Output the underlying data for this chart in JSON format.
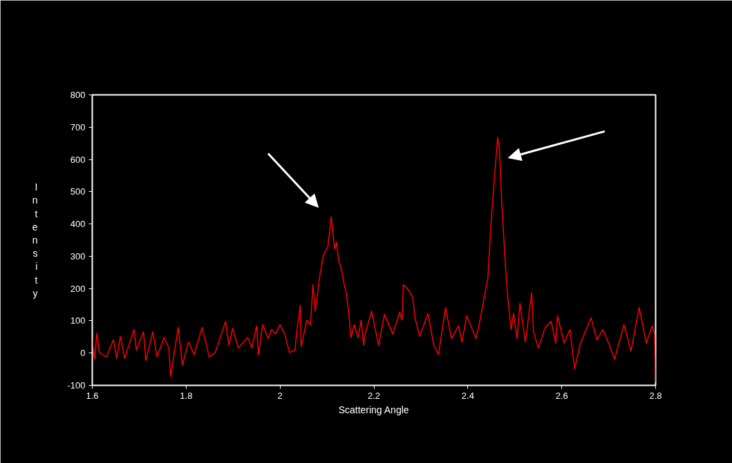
{
  "chart_data": {
    "type": "line",
    "xlabel": "Scattering Angle",
    "ylabel": "Intensity",
    "xlim": [
      1.6,
      2.8
    ],
    "ylim": [
      -100,
      800
    ],
    "xticks": [
      1.6,
      1.8,
      2,
      2.2,
      2.4,
      2.6,
      2.8
    ],
    "yticks": [
      -100,
      0,
      100,
      200,
      300,
      400,
      500,
      600,
      700,
      800
    ],
    "grid": false,
    "marker": "none",
    "line_style": "solid",
    "series": [
      {
        "color": "#ff0000",
        "x": [
          1.6,
          1.605,
          1.61,
          1.615,
          1.63,
          1.645,
          1.652,
          1.66,
          1.669,
          1.689,
          1.694,
          1.709,
          1.714,
          1.729,
          1.738,
          1.753,
          1.763,
          1.767,
          1.783,
          1.792,
          1.805,
          1.817,
          1.834,
          1.849,
          1.862,
          1.884,
          1.891,
          1.899,
          1.911,
          1.931,
          1.94,
          1.95,
          1.954,
          1.963,
          1.975,
          1.982,
          1.99,
          2.0,
          2.01,
          2.02,
          2.032,
          2.035,
          2.043,
          2.045,
          2.057,
          2.065,
          2.07,
          2.075,
          2.085,
          2.092,
          2.097,
          2.102,
          2.109,
          2.112,
          2.116,
          2.12,
          2.125,
          2.131,
          2.136,
          2.141,
          2.146,
          2.151,
          2.158,
          2.166,
          2.173,
          2.178,
          2.18,
          2.195,
          2.21,
          2.2225,
          2.24,
          2.255,
          2.26,
          2.2625,
          2.2725,
          2.2825,
          2.2875,
          2.2975,
          2.315,
          2.3275,
          2.3375,
          2.3525,
          2.365,
          2.38,
          2.3875,
          2.3975,
          2.4175,
          2.425,
          2.435,
          2.4425,
          2.45,
          2.4575,
          2.4635,
          2.4675,
          2.4725,
          2.48,
          2.485,
          2.4925,
          2.4975,
          2.505,
          2.511,
          2.5225,
          2.536,
          2.54,
          2.55,
          2.565,
          2.5775,
          2.5875,
          2.591,
          2.605,
          2.6175,
          2.6275,
          2.64,
          2.6625,
          2.675,
          2.6875,
          2.7,
          2.7125,
          2.7325,
          2.7475,
          2.765,
          2.78,
          2.7925,
          2.7975,
          2.8
        ],
        "values": [
          45,
          -19,
          63,
          2,
          -12,
          41,
          -16,
          52,
          -16,
          73,
          9,
          66,
          -23,
          66,
          -12,
          48,
          16,
          -73,
          80,
          -37,
          34,
          -5,
          80,
          -12,
          2,
          98,
          24,
          77,
          16,
          48,
          16,
          84,
          -5,
          88,
          45,
          73,
          59,
          88,
          59,
          2,
          9,
          59,
          148,
          20,
          102,
          88,
          212,
          130,
          244,
          301,
          316,
          330,
          422,
          380,
          323,
          344,
          287,
          259,
          216,
          187,
          130,
          48,
          88,
          48,
          102,
          24,
          52,
          130,
          24,
          120,
          59,
          127,
          102,
          212,
          198,
          173,
          109,
          52,
          123,
          24,
          -5,
          141,
          45,
          84,
          34,
          116,
          45,
          95,
          173,
          230,
          415,
          558,
          668,
          629,
          458,
          273,
          173,
          73,
          123,
          45,
          155,
          34,
          187,
          66,
          16,
          80,
          98,
          31,
          116,
          31,
          73,
          -48,
          31,
          109,
          41,
          73,
          31,
          -19,
          88,
          6,
          141,
          31,
          84,
          59,
          -90
        ]
      }
    ]
  }
}
